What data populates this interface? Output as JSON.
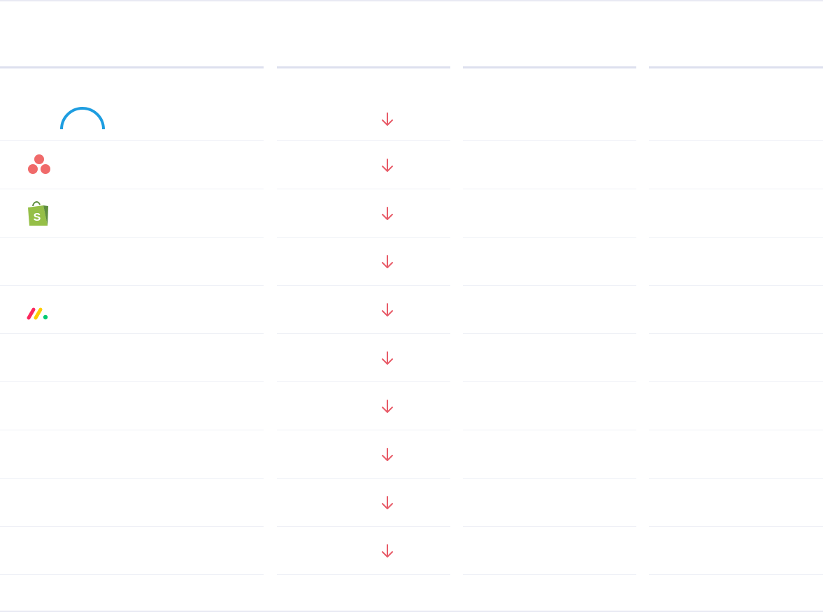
{
  "table": {
    "columns": [
      {
        "label": ""
      },
      {
        "label": ""
      },
      {
        "label": ""
      },
      {
        "label": ""
      }
    ],
    "rows": [
      {
        "logo": "hubspot-icon",
        "name": "",
        "trend": "arrow-down-icon"
      },
      {
        "logo": "asana-icon",
        "name": "",
        "trend": "arrow-down-icon"
      },
      {
        "logo": "shopify-icon",
        "name": "",
        "trend": "arrow-down-icon"
      },
      {
        "logo": "",
        "name": "",
        "trend": "arrow-down-icon"
      },
      {
        "logo": "monday-icon",
        "name": "",
        "trend": "arrow-down-icon"
      },
      {
        "logo": "",
        "name": "",
        "trend": "arrow-down-icon"
      },
      {
        "logo": "",
        "name": "",
        "trend": "arrow-down-icon"
      },
      {
        "logo": "",
        "name": "",
        "trend": "arrow-down-icon"
      },
      {
        "logo": "",
        "name": "",
        "trend": "arrow-down-icon"
      },
      {
        "logo": "",
        "name": "",
        "trend": "arrow-down-icon"
      }
    ]
  },
  "colors": {
    "arrow_down": "#e85b68",
    "hubspot": "#1d9de0",
    "asana": "#f06a6a",
    "shopify": "#95bf47",
    "monday_red": "#fb275d",
    "monday_yellow": "#ffcb00",
    "monday_green": "#00ca72",
    "divider": "#eef0f6",
    "header_rule": "#dde0ee"
  }
}
